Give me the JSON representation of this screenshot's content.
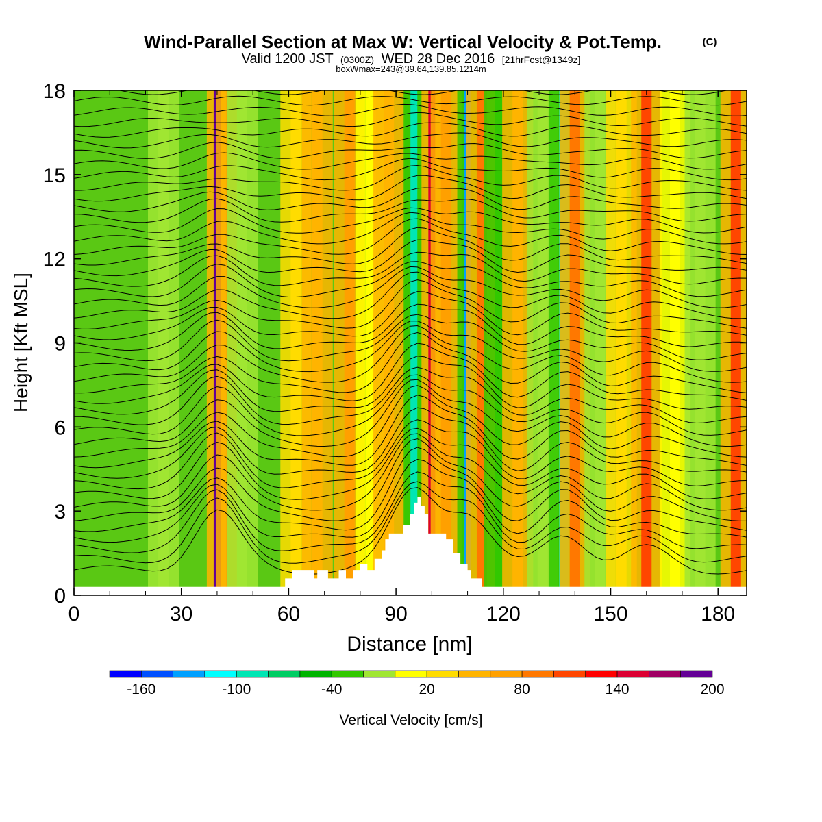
{
  "chart_data": {
    "type": "heatmap",
    "title": "Wind-Parallel Section at Max W: Vertical Velocity & Pot.Temp.",
    "title_mark": "(C)",
    "subtitle": {
      "prefix": "Valid 1200 JST",
      "utc": "(0300Z)",
      "date": "WED 28 Dec 2016",
      "forecast": "[21hrFcst@1349z]"
    },
    "box_label": "boxWmax=243@39.64,139.85,1214m",
    "xlabel": "Distance [nm]",
    "ylabel": "Height [Kft MSL]",
    "xlim": [
      0,
      188
    ],
    "ylim": [
      0,
      18
    ],
    "xticks": [
      "0",
      "30",
      "60",
      "90",
      "120",
      "150",
      "180"
    ],
    "yticks": [
      "0",
      "3",
      "6",
      "9",
      "12",
      "15",
      "18"
    ],
    "colorbar": {
      "label": "Vertical Velocity [cm/s]",
      "ticks": [
        "-160",
        "-100",
        "-40",
        "20",
        "80",
        "140",
        "200"
      ],
      "colors": [
        "#0000ff",
        "#0050ff",
        "#00a0ff",
        "#00ffff",
        "#00e6b4",
        "#00cd64",
        "#00b400",
        "#32c800",
        "#a0e632",
        "#ffff00",
        "#ffdc00",
        "#ffb400",
        "#ffa000",
        "#ff7800",
        "#ff4600",
        "#ff0000",
        "#dc0032",
        "#a00064",
        "#640096"
      ]
    },
    "velocity_columns": [
      {
        "x": 5,
        "w": 0,
        "note": "background"
      },
      {
        "x": 25,
        "w": -20
      },
      {
        "x": 40,
        "w": 240
      },
      {
        "x": 44,
        "w": 60
      },
      {
        "x": 47,
        "w": -30
      },
      {
        "x": 62,
        "w": 10
      },
      {
        "x": 68,
        "w": 40
      },
      {
        "x": 77,
        "w": 50
      },
      {
        "x": 83,
        "w": -10
      },
      {
        "x": 88,
        "w": 40
      },
      {
        "x": 95,
        "w": -110
      },
      {
        "x": 100,
        "w": 140
      },
      {
        "x": 104,
        "w": 60
      },
      {
        "x": 110,
        "w": -150
      },
      {
        "x": 114,
        "w": 70
      },
      {
        "x": 119,
        "w": -50
      },
      {
        "x": 124,
        "w": 40
      },
      {
        "x": 131,
        "w": -30
      },
      {
        "x": 137,
        "w": -100
      },
      {
        "x": 140,
        "w": 80
      },
      {
        "x": 147,
        "w": -20
      },
      {
        "x": 153,
        "w": 20
      },
      {
        "x": 160,
        "w": 90
      },
      {
        "x": 168,
        "w": 0
      },
      {
        "x": 175,
        "w": -20
      },
      {
        "x": 185,
        "w": 90
      }
    ],
    "terrain_kft": [
      [
        0,
        0.3
      ],
      [
        58,
        0.3
      ],
      [
        59,
        0.6
      ],
      [
        61,
        0.9
      ],
      [
        67,
        0.6
      ],
      [
        68,
        0.9
      ],
      [
        71,
        0.6
      ],
      [
        73,
        0.6
      ],
      [
        74,
        0.9
      ],
      [
        76,
        0.6
      ],
      [
        78,
        0.9
      ],
      [
        80,
        1.1
      ],
      [
        82,
        0.9
      ],
      [
        84,
        1.3
      ],
      [
        86,
        1.6
      ],
      [
        87,
        2.0
      ],
      [
        88,
        2.2
      ],
      [
        91,
        2.2
      ],
      [
        92,
        2.5
      ],
      [
        94,
        2.9
      ],
      [
        95,
        3.3
      ],
      [
        96,
        3.5
      ],
      [
        97,
        3.2
      ],
      [
        98,
        2.9
      ],
      [
        99,
        2.2
      ],
      [
        103,
        2.2
      ],
      [
        104,
        2.0
      ],
      [
        106,
        1.5
      ],
      [
        108,
        1.1
      ],
      [
        110,
        0.9
      ],
      [
        111,
        0.6
      ],
      [
        114,
        0.3
      ],
      [
        188,
        0.3
      ]
    ],
    "isentrope_count": 46
  }
}
